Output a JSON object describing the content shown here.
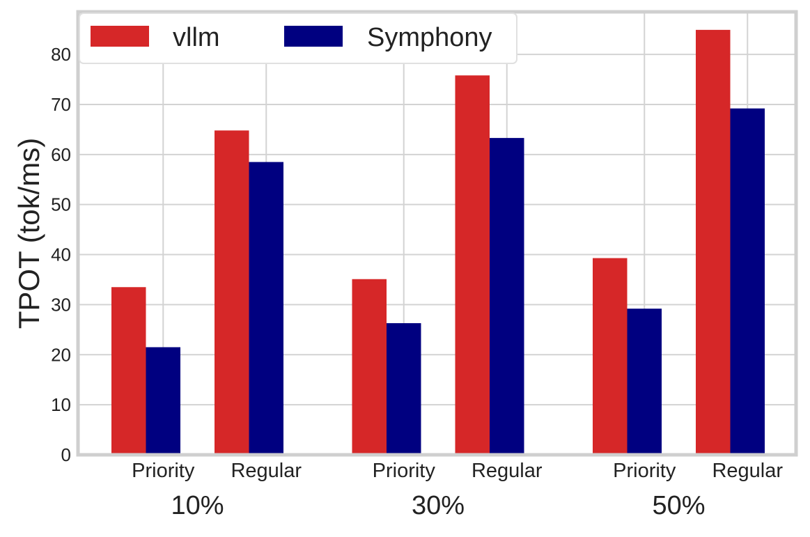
{
  "chart_data": {
    "type": "bar",
    "title": "",
    "xlabel": "",
    "ylabel": "TPOT (tok/ms)",
    "ylim": [
      0,
      88.5
    ],
    "yticks": [
      0,
      10,
      20,
      30,
      40,
      50,
      60,
      70,
      80
    ],
    "grid": true,
    "legend_position": "top-left",
    "groups": [
      {
        "label": "10%",
        "categories": [
          "Priority",
          "Regular"
        ]
      },
      {
        "label": "30%",
        "categories": [
          "Priority",
          "Regular"
        ]
      },
      {
        "label": "50%",
        "categories": [
          "Priority",
          "Regular"
        ]
      }
    ],
    "series": [
      {
        "name": "vllm",
        "color": "#d62728",
        "values": [
          [
            33.5,
            64.8
          ],
          [
            35.1,
            75.8
          ],
          [
            39.3,
            84.9
          ]
        ]
      },
      {
        "name": "Symphony",
        "color": "#000080",
        "values": [
          [
            21.5,
            58.5
          ],
          [
            26.3,
            63.3
          ],
          [
            29.2,
            69.2
          ]
        ]
      }
    ]
  }
}
